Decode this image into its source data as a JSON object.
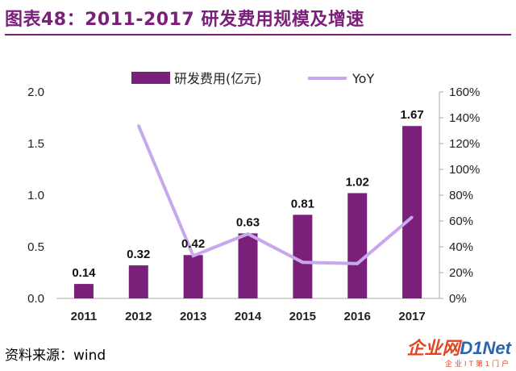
{
  "title": "图表48：2011-2017 研发费用规模及增速",
  "source": "资料来源：wind",
  "watermark": {
    "brand_a": "企业网",
    "brand_b": "D1Net",
    "tagline": "企业IT第1门户"
  },
  "colors": {
    "bar": "#7a1f7a",
    "line": "#c8a8ec",
    "title": "#7a1f7a"
  },
  "chart_data": {
    "type": "bar",
    "title": "",
    "categories": [
      "2011",
      "2012",
      "2013",
      "2014",
      "2015",
      "2016",
      "2017"
    ],
    "series": [
      {
        "name": "研发费用(亿元)",
        "type": "bar",
        "axis": "left",
        "values": [
          0.14,
          0.32,
          0.42,
          0.63,
          0.81,
          1.02,
          1.67
        ],
        "labels": [
          "0.14",
          "0.32",
          "0.42",
          "0.63",
          "0.81",
          "1.02",
          "1.67"
        ]
      },
      {
        "name": "YoY",
        "type": "line",
        "axis": "right",
        "values": [
          null,
          1.34,
          0.33,
          0.5,
          0.28,
          0.27,
          0.63
        ]
      }
    ],
    "y_left": {
      "min": 0,
      "max": 2.0,
      "ticks": [
        "0.0",
        "0.5",
        "1.0",
        "1.5",
        "2.0"
      ]
    },
    "y_right": {
      "min": 0,
      "max": 1.6,
      "ticks": [
        "0%",
        "20%",
        "40%",
        "60%",
        "80%",
        "100%",
        "120%",
        "140%",
        "160%"
      ]
    },
    "legend": "top-center",
    "grid": false
  }
}
